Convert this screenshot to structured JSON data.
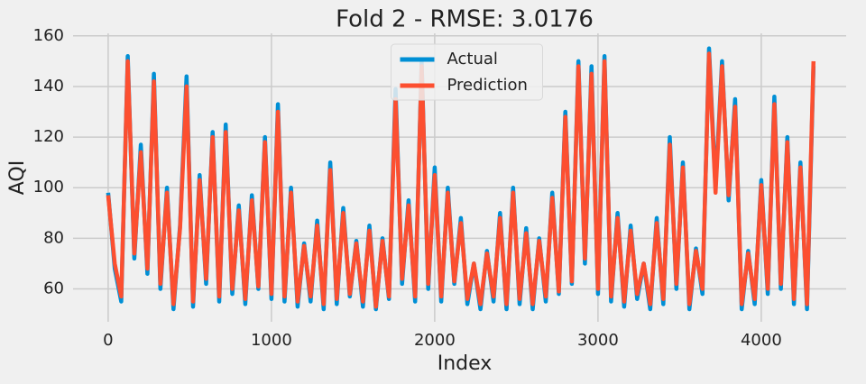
{
  "chart_data": {
    "type": "line",
    "title": "Fold 2 - RMSE: 3.0176",
    "xlabel": "Index",
    "ylabel": "AQI",
    "x": [
      0,
      40,
      80,
      120,
      160,
      200,
      240,
      280,
      320,
      360,
      400,
      440,
      480,
      520,
      560,
      600,
      640,
      680,
      720,
      760,
      800,
      840,
      880,
      920,
      960,
      1000,
      1040,
      1080,
      1120,
      1160,
      1200,
      1240,
      1280,
      1320,
      1360,
      1400,
      1440,
      1480,
      1520,
      1560,
      1600,
      1640,
      1680,
      1720,
      1760,
      1800,
      1840,
      1880,
      1920,
      1960,
      2000,
      2040,
      2080,
      2120,
      2160,
      2200,
      2240,
      2280,
      2320,
      2360,
      2400,
      2440,
      2480,
      2520,
      2560,
      2600,
      2640,
      2680,
      2720,
      2760,
      2800,
      2840,
      2880,
      2920,
      2960,
      3000,
      3040,
      3080,
      3120,
      3160,
      3200,
      3240,
      3280,
      3320,
      3360,
      3400,
      3440,
      3480,
      3520,
      3560,
      3600,
      3640,
      3680,
      3720,
      3760,
      3800,
      3840,
      3880,
      3920,
      3960,
      4000,
      4040,
      4080,
      4120,
      4160,
      4200,
      4240,
      4280,
      4320
    ],
    "series": [
      {
        "name": "Actual",
        "color": "#008fd5",
        "values": [
          98,
          68,
          55,
          152,
          72,
          117,
          66,
          145,
          60,
          100,
          52,
          85,
          144,
          53,
          105,
          62,
          122,
          55,
          125,
          58,
          93,
          54,
          97,
          60,
          120,
          56,
          133,
          55,
          100,
          53,
          78,
          55,
          87,
          52,
          110,
          54,
          92,
          57,
          79,
          53,
          85,
          52,
          80,
          56,
          139,
          62,
          95,
          55,
          150,
          60,
          108,
          55,
          100,
          62,
          88,
          54,
          70,
          52,
          75,
          55,
          90,
          52,
          100,
          54,
          84,
          52,
          80,
          55,
          98,
          58,
          130,
          62,
          150,
          70,
          148,
          58,
          152,
          55,
          90,
          53,
          85,
          56,
          70,
          52,
          88,
          54,
          120,
          60,
          110,
          52,
          76,
          58,
          155,
          100,
          150,
          95,
          135,
          52,
          75,
          54,
          103,
          58,
          136,
          60,
          120,
          54,
          110,
          52,
          148
        ]
      },
      {
        "name": "Prediction",
        "color": "#fc4f30",
        "values": [
          97,
          70,
          57,
          150,
          74,
          114,
          68,
          142,
          62,
          98,
          54,
          84,
          140,
          55,
          103,
          64,
          120,
          57,
          122,
          60,
          91,
          56,
          95,
          61,
          118,
          58,
          130,
          57,
          98,
          55,
          77,
          57,
          85,
          54,
          107,
          56,
          90,
          58,
          78,
          55,
          83,
          53,
          79,
          57,
          135,
          64,
          93,
          57,
          148,
          62,
          105,
          57,
          98,
          63,
          86,
          56,
          70,
          54,
          74,
          57,
          88,
          54,
          98,
          56,
          82,
          54,
          79,
          57,
          96,
          59,
          128,
          63,
          148,
          72,
          145,
          60,
          150,
          57,
          88,
          55,
          83,
          58,
          70,
          54,
          86,
          56,
          117,
          62,
          108,
          54,
          75,
          60,
          153,
          98,
          148,
          97,
          132,
          54,
          74,
          56,
          101,
          60,
          133,
          62,
          118,
          56,
          108,
          54,
          150
        ]
      }
    ],
    "xlim": [
      -215,
      4520
    ],
    "ylim": [
      47,
      161
    ],
    "xticks": [
      0,
      1000,
      2000,
      3000,
      4000
    ],
    "yticks": [
      60,
      80,
      100,
      120,
      140,
      160
    ],
    "grid": true,
    "legend": "upper center"
  }
}
